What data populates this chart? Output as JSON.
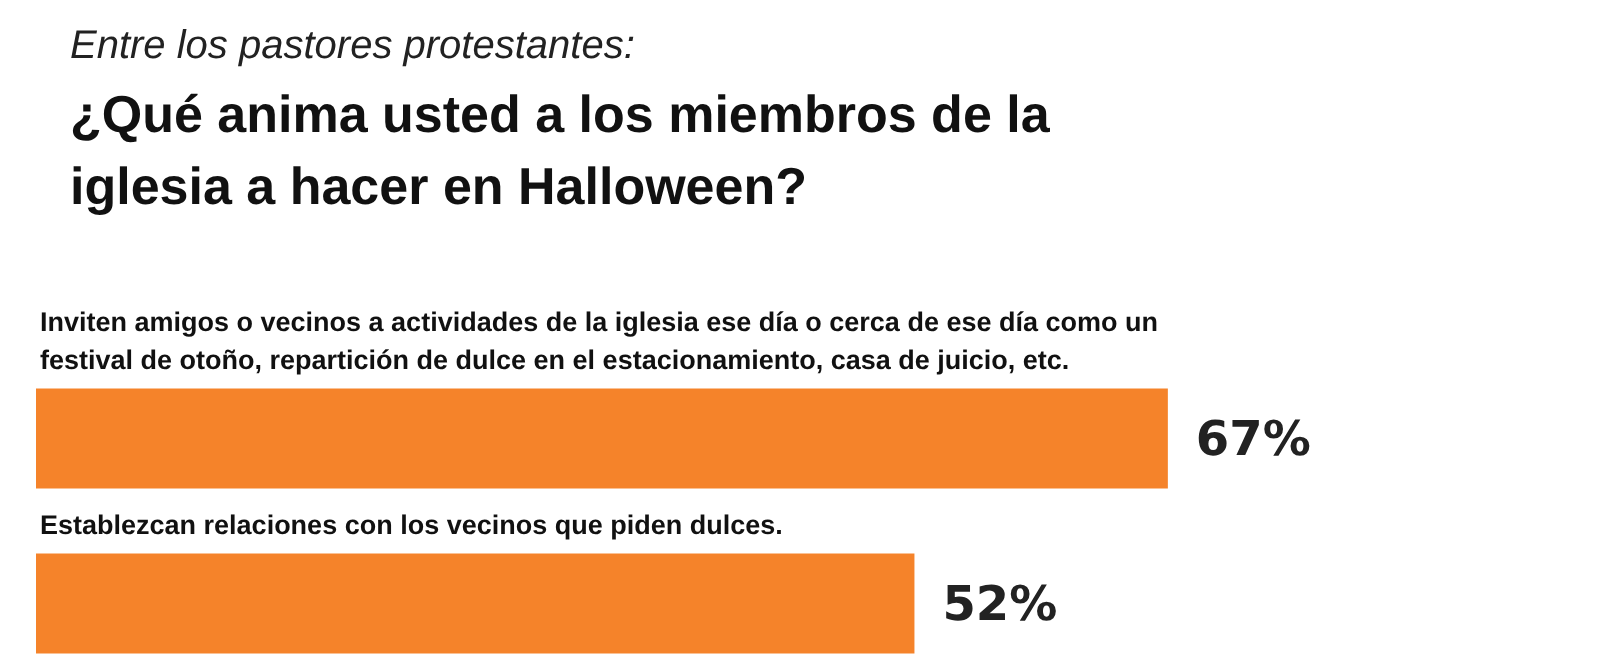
{
  "chart_data": {
    "type": "bar",
    "orientation": "horizontal",
    "subtitle": "Entre los pastores protestantes:",
    "title": "¿Qué anima usted a los miembros de la iglesia a hacer en Halloween?",
    "categories": [
      "Inviten amigos o vecinos a actividades de la iglesia ese día o cerca de ese día como un festival de otoño, repartición de dulce en el estacionamiento, casa de juicio, etc.",
      "Establezcan relaciones con los vecinos que piden dulces."
    ],
    "values": [
      67,
      52
    ],
    "value_labels": [
      "67%",
      "52%"
    ],
    "color": "#f5832a"
  }
}
